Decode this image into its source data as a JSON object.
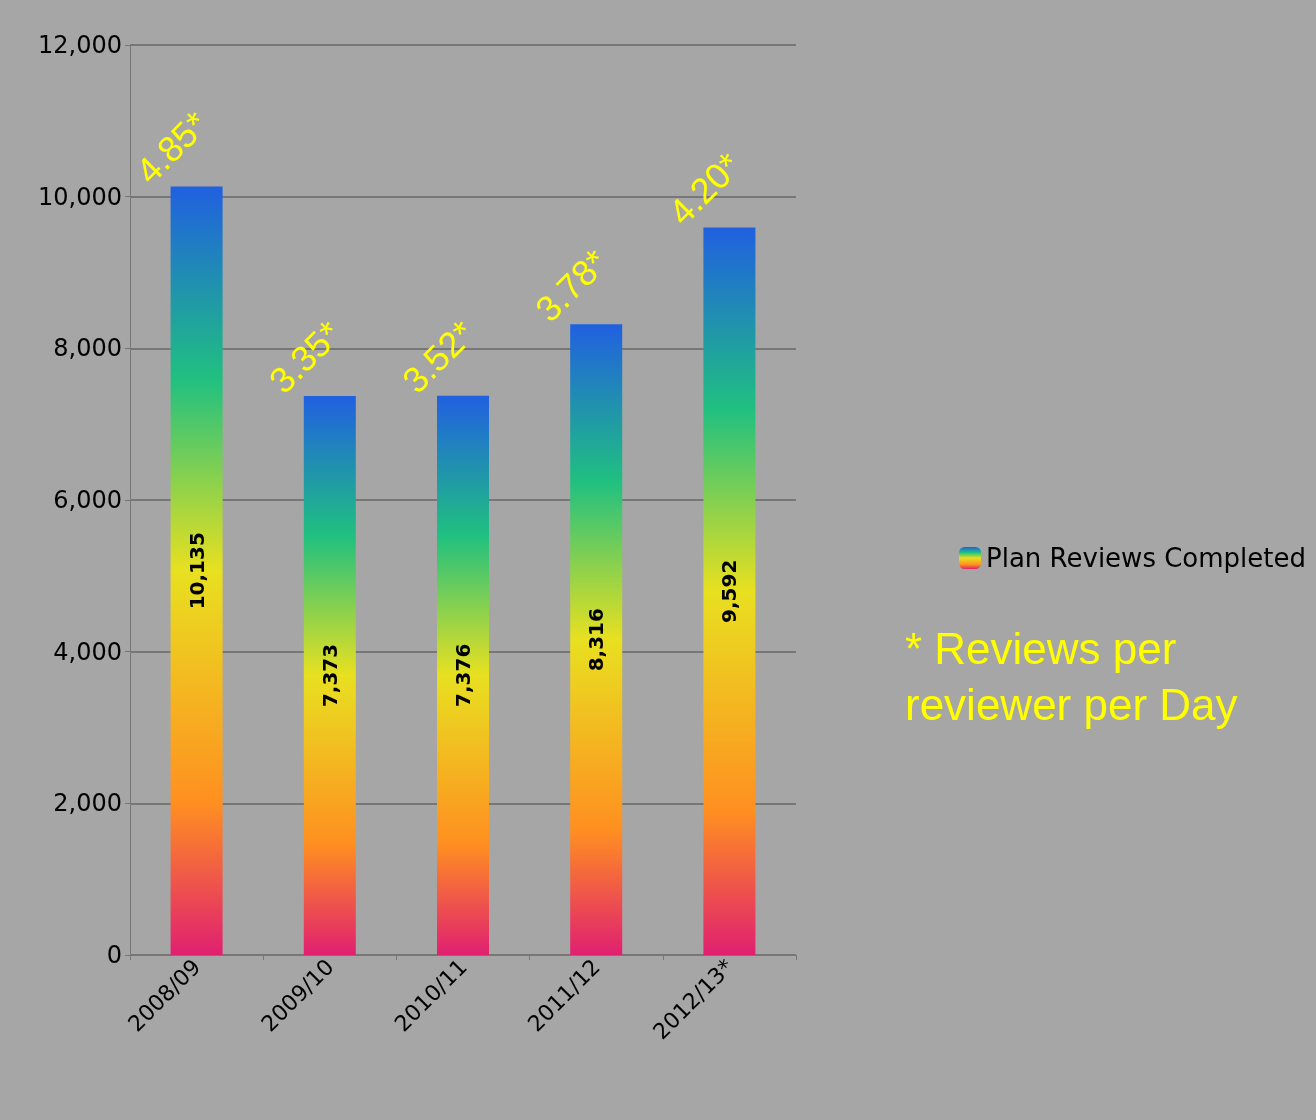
{
  "chart_data": {
    "type": "bar",
    "categories": [
      "2008/09",
      "2009/10",
      "2010/11",
      "2011/12",
      "2012/13*"
    ],
    "series": [
      {
        "name": "Plan Reviews Completed",
        "color": "#e8e020",
        "values": [
          10135,
          7373,
          7376,
          8316,
          9592
        ],
        "value_labels": [
          "10,135",
          "7,373",
          "7,376",
          "8,316",
          "9,592"
        ]
      }
    ],
    "ylim": [
      0,
      12000
    ],
    "yticks": [
      0,
      {
        "value": 2000,
        "label": "2,000"
      },
      {
        "value": 4000,
        "label": "4,000"
      },
      {
        "value": 6000,
        "label": "6,000"
      },
      {
        "value": 8000,
        "label": "8,000"
      },
      {
        "value": 10000,
        "label": "10,000"
      },
      {
        "value": 12000,
        "label": "12,000"
      }
    ],
    "grid": "y",
    "legend": "right",
    "annotations": [
      {
        "text": "4.85*",
        "x": "2008/09",
        "y": 10135
      },
      {
        "text": "3.35*",
        "x": "2009/10",
        "y": 7373
      },
      {
        "text": "3.52*",
        "x": "2010/11",
        "y": 7376
      },
      {
        "text": "3.78*",
        "x": "2011/12",
        "y": 8316
      },
      {
        "text": "4.20*",
        "x": "2012/13*",
        "y": 9592
      },
      "* Reviews per reviewer per Day"
    ]
  }
}
